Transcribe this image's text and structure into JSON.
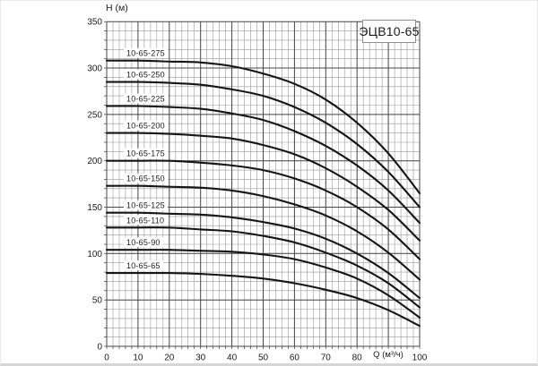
{
  "chart": {
    "title": "ЭЦВ10-65",
    "y_axis_label": "H (м)",
    "x_axis_label": "Q (м³/ч)"
  },
  "chart_data": {
    "type": "line",
    "title": "ЭЦВ10-65",
    "xlabel": "Q (м³/ч)",
    "ylabel": "H (м)",
    "xlim": [
      0,
      100
    ],
    "ylim": [
      0,
      350
    ],
    "grid": "on",
    "x_minor_step": 2,
    "y_minor_step": 10,
    "x_ticks": [
      {
        "value": 0,
        "label": "0"
      },
      {
        "value": 10,
        "label": "10"
      },
      {
        "value": 20,
        "label": "20"
      },
      {
        "value": 30,
        "label": "30"
      },
      {
        "value": 40,
        "label": "40"
      },
      {
        "value": 50,
        "label": "50"
      },
      {
        "value": 60,
        "label": "60"
      },
      {
        "value": 70,
        "label": "70"
      },
      {
        "value": 80,
        "label": "80"
      },
      {
        "value": 90,
        "label": ""
      },
      {
        "value": 100,
        "label": "100"
      }
    ],
    "y_ticks": [
      {
        "value": 0,
        "label": "0"
      },
      {
        "value": 50,
        "label": "50"
      },
      {
        "value": 100,
        "label": "100"
      },
      {
        "value": 150,
        "label": "150"
      },
      {
        "value": 200,
        "label": "200"
      },
      {
        "value": 250,
        "label": "250"
      },
      {
        "value": 300,
        "label": "300"
      },
      {
        "value": 350,
        "label": "350"
      }
    ],
    "x": [
      0,
      10,
      20,
      30,
      40,
      50,
      60,
      70,
      80,
      90,
      100
    ],
    "series": [
      {
        "name": "10-65-275",
        "values": [
          308,
          308,
          307,
          306,
          302,
          294,
          283,
          266,
          241,
          208,
          165
        ]
      },
      {
        "name": "10-65-250",
        "values": [
          285,
          285,
          284,
          282,
          277,
          270,
          258,
          241,
          218,
          188,
          150
        ]
      },
      {
        "name": "10-65-225",
        "values": [
          259,
          259,
          258,
          256,
          251,
          244,
          232,
          216,
          195,
          168,
          133
        ]
      },
      {
        "name": "10-65-200",
        "values": [
          230,
          230,
          229,
          227,
          224,
          217,
          207,
          192,
          172,
          147,
          114
        ]
      },
      {
        "name": "10-65-175",
        "values": [
          200,
          200,
          200,
          198,
          195,
          190,
          181,
          168,
          150,
          126,
          94
        ]
      },
      {
        "name": "10-65-150",
        "values": [
          173,
          173,
          172,
          171,
          168,
          162,
          153,
          141,
          124,
          101,
          72
        ]
      },
      {
        "name": "10-65-125",
        "values": [
          144,
          144,
          143,
          142,
          139,
          134,
          127,
          116,
          100,
          79,
          52
        ]
      },
      {
        "name": "10-65-110",
        "values": [
          128,
          128,
          128,
          126,
          124,
          119,
          112,
          101,
          87,
          68,
          42
        ]
      },
      {
        "name": "10-65-90",
        "values": [
          104,
          104,
          104,
          103,
          102,
          99,
          94,
          85,
          73,
          55,
          31
        ]
      },
      {
        "name": "10-65-65",
        "values": [
          79,
          79,
          79,
          78,
          76,
          73,
          68,
          61,
          52,
          39,
          22
        ]
      }
    ],
    "style": {
      "curve_color": "#151515",
      "grid_minor_color": "#999999",
      "grid_major_color": "#474747",
      "tick_color": "#3a3a3a",
      "text_color": "#1c1c1c",
      "label_bg": "#ffffff"
    }
  }
}
